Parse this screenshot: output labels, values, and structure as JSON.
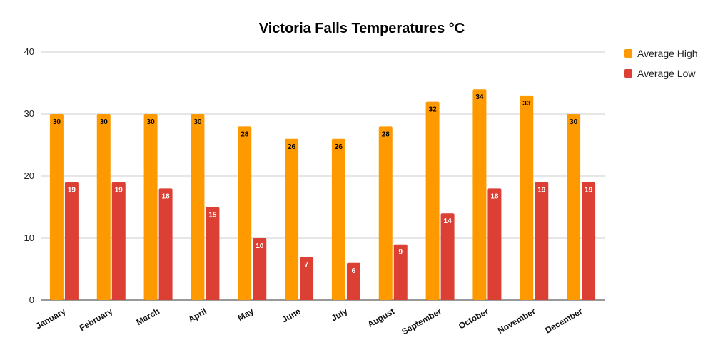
{
  "chart_data": {
    "type": "bar",
    "title": "Victoria Falls Temperatures °C",
    "xlabel": "",
    "ylabel": "",
    "ylim": [
      0,
      40
    ],
    "yticks": [
      0,
      10,
      20,
      30,
      40
    ],
    "grid": true,
    "legend_position": "top-right",
    "categories": [
      "January",
      "February",
      "March",
      "April",
      "May",
      "June",
      "July",
      "August",
      "September",
      "October",
      "November",
      "December"
    ],
    "series": [
      {
        "name": "Average High",
        "color": "#ff9900",
        "label_color": "#000000",
        "values": [
          30,
          30,
          30,
          30,
          28,
          26,
          26,
          28,
          32,
          34,
          33,
          30
        ]
      },
      {
        "name": "Average Low",
        "color": "#dc3f33",
        "label_color": "#ffffff",
        "values": [
          19,
          19,
          18,
          15,
          10,
          7,
          6,
          9,
          14,
          18,
          19,
          19
        ]
      }
    ]
  }
}
